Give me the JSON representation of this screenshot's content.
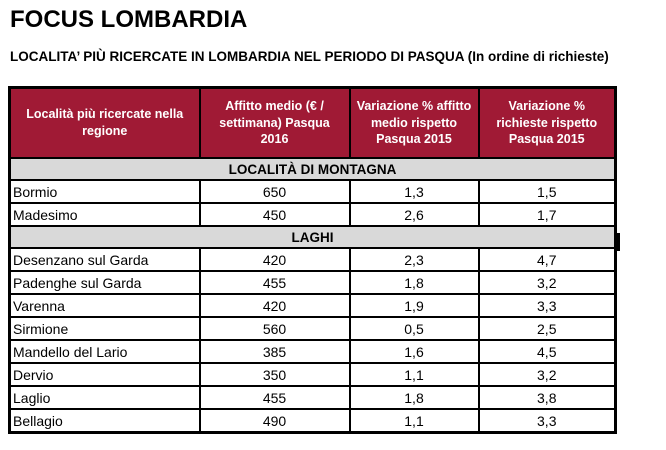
{
  "page": {
    "title": "FOCUS LOMBARDIA",
    "subtitle": "LOCALITA’ PIÙ RICERCATE IN LOMBARDIA NEL PERIODO DI PASQUA (In ordine di richieste)"
  },
  "colors": {
    "header_bg": "#A01A35",
    "section_bg": "#D9D9D9",
    "border": "#000000",
    "header_text": "#FFFFFF"
  },
  "table": {
    "columns": [
      "Località più ricercate nella regione",
      "Affitto medio (€ / settimana) Pasqua 2016",
      "Variazione % affitto medio rispetto Pasqua 2015",
      "Variazione % richieste rispetto Pasqua 2015"
    ],
    "sections": [
      {
        "label": "LOCALITÀ DI MONTAGNA",
        "rows": [
          {
            "locality": "Bormio",
            "rent": "650",
            "rent_change": "1,3",
            "request_change": "1,5"
          },
          {
            "locality": "Madesimo",
            "rent": "450",
            "rent_change": "2,6",
            "request_change": "1,7"
          }
        ]
      },
      {
        "label": "LAGHI",
        "rows": [
          {
            "locality": "Desenzano sul Garda",
            "rent": "420",
            "rent_change": "2,3",
            "request_change": "4,7"
          },
          {
            "locality": "Padenghe sul Garda",
            "rent": "455",
            "rent_change": "1,8",
            "request_change": "3,2"
          },
          {
            "locality": "Varenna",
            "rent": "420",
            "rent_change": "1,9",
            "request_change": "3,3"
          },
          {
            "locality": "Sirmione",
            "rent": "560",
            "rent_change": "0,5",
            "request_change": "2,5"
          },
          {
            "locality": "Mandello del Lario",
            "rent": "385",
            "rent_change": "1,6",
            "request_change": "4,5"
          },
          {
            "locality": "Dervio",
            "rent": "350",
            "rent_change": "1,1",
            "request_change": "3,2"
          },
          {
            "locality": "Laglio",
            "rent": "455",
            "rent_change": "1,8",
            "request_change": "3,8"
          },
          {
            "locality": "Bellagio",
            "rent": "490",
            "rent_change": "1,1",
            "request_change": "3,3"
          }
        ]
      }
    ]
  }
}
